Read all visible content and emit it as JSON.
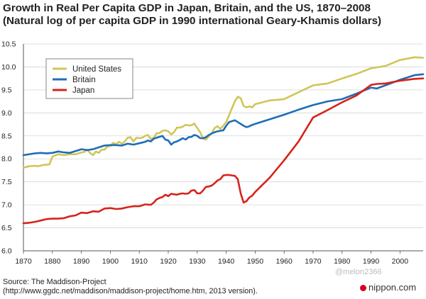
{
  "title_line1": "Growth in Real Per Capita GDP in Japan, Britain, and the US, 1870–2008",
  "title_line2": "(Natural log of per capita GDP in 1990 international Geary-Khamis dollars)",
  "source_line1": "Source: The Maddison-Project",
  "source_line2": "(http://www.ggdc.net/maddison/maddison-project/home.htm, 2013 version).",
  "watermark": "@melon2366",
  "brand": "nippon.com",
  "brand_color": "#d6001c",
  "chart_data": {
    "type": "line",
    "title": "Growth in Real Per Capita GDP in Japan, Britain, and the US, 1870–2008",
    "xlim": [
      1870,
      2008
    ],
    "ylim": [
      6.0,
      10.5
    ],
    "x_ticks": [
      1870,
      1880,
      1890,
      1900,
      1910,
      1920,
      1930,
      1940,
      1950,
      1960,
      1970,
      1980,
      1990,
      2000
    ],
    "x_tick_labels": [
      "1870",
      "1880",
      "1890",
      "1900",
      "1910",
      "1920",
      "1930",
      "1940",
      "1950",
      "1960",
      "1970",
      "1980",
      "1990",
      "2000"
    ],
    "y_ticks": [
      6.0,
      6.5,
      7.0,
      7.5,
      8.0,
      8.5,
      9.0,
      9.5,
      10.0,
      10.5
    ],
    "y_tick_labels": [
      "6.0",
      "6.5",
      "7.0",
      "7.5",
      "8.0",
      "8.5",
      "9.0",
      "9.5",
      "10.0",
      "10.5"
    ],
    "grid": "horizontal",
    "legend_position": "top-left",
    "series": [
      {
        "name": "United States",
        "color": "#cfc65a",
        "points": [
          [
            1870,
            7.81
          ],
          [
            1872,
            7.84
          ],
          [
            1874,
            7.85
          ],
          [
            1875,
            7.84
          ],
          [
            1877,
            7.87
          ],
          [
            1879,
            7.88
          ],
          [
            1880,
            8.05
          ],
          [
            1882,
            8.1
          ],
          [
            1884,
            8.08
          ],
          [
            1886,
            8.1
          ],
          [
            1888,
            8.1
          ],
          [
            1890,
            8.14
          ],
          [
            1891,
            8.15
          ],
          [
            1892,
            8.2
          ],
          [
            1893,
            8.13
          ],
          [
            1894,
            8.08
          ],
          [
            1895,
            8.16
          ],
          [
            1896,
            8.13
          ],
          [
            1897,
            8.2
          ],
          [
            1898,
            8.2
          ],
          [
            1899,
            8.27
          ],
          [
            1900,
            8.28
          ],
          [
            1901,
            8.35
          ],
          [
            1902,
            8.32
          ],
          [
            1903,
            8.37
          ],
          [
            1904,
            8.33
          ],
          [
            1905,
            8.38
          ],
          [
            1906,
            8.46
          ],
          [
            1907,
            8.47
          ],
          [
            1908,
            8.38
          ],
          [
            1909,
            8.46
          ],
          [
            1910,
            8.45
          ],
          [
            1911,
            8.46
          ],
          [
            1912,
            8.5
          ],
          [
            1913,
            8.52
          ],
          [
            1914,
            8.43
          ],
          [
            1915,
            8.46
          ],
          [
            1916,
            8.56
          ],
          [
            1917,
            8.56
          ],
          [
            1918,
            8.61
          ],
          [
            1919,
            8.62
          ],
          [
            1920,
            8.6
          ],
          [
            1921,
            8.53
          ],
          [
            1922,
            8.58
          ],
          [
            1923,
            8.68
          ],
          [
            1924,
            8.68
          ],
          [
            1925,
            8.7
          ],
          [
            1926,
            8.74
          ],
          [
            1927,
            8.73
          ],
          [
            1928,
            8.73
          ],
          [
            1929,
            8.77
          ],
          [
            1930,
            8.67
          ],
          [
            1931,
            8.58
          ],
          [
            1932,
            8.44
          ],
          [
            1933,
            8.42
          ],
          [
            1934,
            8.49
          ],
          [
            1935,
            8.56
          ],
          [
            1936,
            8.67
          ],
          [
            1937,
            8.71
          ],
          [
            1938,
            8.65
          ],
          [
            1939,
            8.72
          ],
          [
            1940,
            8.8
          ],
          [
            1941,
            8.95
          ],
          [
            1942,
            9.1
          ],
          [
            1943,
            9.25
          ],
          [
            1944,
            9.35
          ],
          [
            1945,
            9.32
          ],
          [
            1946,
            9.15
          ],
          [
            1947,
            9.12
          ],
          [
            1948,
            9.14
          ],
          [
            1949,
            9.12
          ],
          [
            1950,
            9.19
          ],
          [
            1955,
            9.27
          ],
          [
            1960,
            9.3
          ],
          [
            1965,
            9.45
          ],
          [
            1970,
            9.6
          ],
          [
            1975,
            9.64
          ],
          [
            1980,
            9.75
          ],
          [
            1985,
            9.85
          ],
          [
            1990,
            9.97
          ],
          [
            1995,
            10.02
          ],
          [
            2000,
            10.15
          ],
          [
            2005,
            10.21
          ],
          [
            2008,
            10.2
          ]
        ]
      },
      {
        "name": "Britain",
        "color": "#1f6db5",
        "points": [
          [
            1870,
            8.08
          ],
          [
            1872,
            8.1
          ],
          [
            1874,
            8.12
          ],
          [
            1876,
            8.13
          ],
          [
            1878,
            8.12
          ],
          [
            1880,
            8.13
          ],
          [
            1882,
            8.16
          ],
          [
            1884,
            8.14
          ],
          [
            1886,
            8.13
          ],
          [
            1888,
            8.17
          ],
          [
            1890,
            8.21
          ],
          [
            1892,
            8.19
          ],
          [
            1894,
            8.21
          ],
          [
            1896,
            8.25
          ],
          [
            1898,
            8.29
          ],
          [
            1900,
            8.3
          ],
          [
            1902,
            8.3
          ],
          [
            1904,
            8.29
          ],
          [
            1906,
            8.33
          ],
          [
            1908,
            8.31
          ],
          [
            1910,
            8.34
          ],
          [
            1912,
            8.37
          ],
          [
            1913,
            8.4
          ],
          [
            1914,
            8.38
          ],
          [
            1915,
            8.44
          ],
          [
            1916,
            8.46
          ],
          [
            1917,
            8.48
          ],
          [
            1918,
            8.5
          ],
          [
            1919,
            8.42
          ],
          [
            1920,
            8.4
          ],
          [
            1921,
            8.31
          ],
          [
            1922,
            8.36
          ],
          [
            1923,
            8.38
          ],
          [
            1924,
            8.41
          ],
          [
            1925,
            8.45
          ],
          [
            1926,
            8.42
          ],
          [
            1927,
            8.47
          ],
          [
            1928,
            8.48
          ],
          [
            1929,
            8.52
          ],
          [
            1930,
            8.5
          ],
          [
            1931,
            8.45
          ],
          [
            1932,
            8.45
          ],
          [
            1933,
            8.47
          ],
          [
            1934,
            8.52
          ],
          [
            1935,
            8.55
          ],
          [
            1936,
            8.58
          ],
          [
            1937,
            8.6
          ],
          [
            1938,
            8.61
          ],
          [
            1939,
            8.62
          ],
          [
            1940,
            8.72
          ],
          [
            1941,
            8.8
          ],
          [
            1942,
            8.82
          ],
          [
            1943,
            8.84
          ],
          [
            1944,
            8.8
          ],
          [
            1945,
            8.76
          ],
          [
            1946,
            8.72
          ],
          [
            1947,
            8.69
          ],
          [
            1948,
            8.71
          ],
          [
            1949,
            8.74
          ],
          [
            1950,
            8.76
          ],
          [
            1955,
            8.86
          ],
          [
            1960,
            8.96
          ],
          [
            1965,
            9.07
          ],
          [
            1970,
            9.17
          ],
          [
            1975,
            9.25
          ],
          [
            1980,
            9.3
          ],
          [
            1985,
            9.42
          ],
          [
            1990,
            9.55
          ],
          [
            1992,
            9.53
          ],
          [
            1995,
            9.6
          ],
          [
            2000,
            9.72
          ],
          [
            2005,
            9.82
          ],
          [
            2008,
            9.84
          ]
        ]
      },
      {
        "name": "Japan",
        "color": "#d6231b",
        "points": [
          [
            1870,
            6.6
          ],
          [
            1872,
            6.61
          ],
          [
            1874,
            6.63
          ],
          [
            1876,
            6.66
          ],
          [
            1878,
            6.69
          ],
          [
            1880,
            6.7
          ],
          [
            1882,
            6.7
          ],
          [
            1884,
            6.71
          ],
          [
            1886,
            6.75
          ],
          [
            1888,
            6.77
          ],
          [
            1890,
            6.83
          ],
          [
            1892,
            6.82
          ],
          [
            1894,
            6.86
          ],
          [
            1896,
            6.85
          ],
          [
            1898,
            6.92
          ],
          [
            1900,
            6.93
          ],
          [
            1902,
            6.91
          ],
          [
            1904,
            6.92
          ],
          [
            1906,
            6.95
          ],
          [
            1908,
            6.97
          ],
          [
            1910,
            6.97
          ],
          [
            1912,
            7.01
          ],
          [
            1914,
            7.0
          ],
          [
            1915,
            7.05
          ],
          [
            1916,
            7.12
          ],
          [
            1917,
            7.15
          ],
          [
            1918,
            7.17
          ],
          [
            1919,
            7.22
          ],
          [
            1920,
            7.19
          ],
          [
            1921,
            7.24
          ],
          [
            1922,
            7.23
          ],
          [
            1923,
            7.22
          ],
          [
            1924,
            7.24
          ],
          [
            1925,
            7.25
          ],
          [
            1926,
            7.24
          ],
          [
            1927,
            7.25
          ],
          [
            1928,
            7.31
          ],
          [
            1929,
            7.32
          ],
          [
            1930,
            7.25
          ],
          [
            1931,
            7.25
          ],
          [
            1932,
            7.31
          ],
          [
            1933,
            7.39
          ],
          [
            1934,
            7.4
          ],
          [
            1935,
            7.42
          ],
          [
            1936,
            7.47
          ],
          [
            1937,
            7.53
          ],
          [
            1938,
            7.56
          ],
          [
            1939,
            7.64
          ],
          [
            1940,
            7.65
          ],
          [
            1941,
            7.65
          ],
          [
            1942,
            7.64
          ],
          [
            1943,
            7.63
          ],
          [
            1944,
            7.56
          ],
          [
            1945,
            7.25
          ],
          [
            1946,
            7.05
          ],
          [
            1947,
            7.08
          ],
          [
            1948,
            7.16
          ],
          [
            1949,
            7.2
          ],
          [
            1950,
            7.28
          ],
          [
            1955,
            7.59
          ],
          [
            1960,
            7.97
          ],
          [
            1965,
            8.38
          ],
          [
            1970,
            8.9
          ],
          [
            1975,
            9.06
          ],
          [
            1980,
            9.23
          ],
          [
            1985,
            9.38
          ],
          [
            1990,
            9.61
          ],
          [
            1992,
            9.63
          ],
          [
            1995,
            9.64
          ],
          [
            2000,
            9.7
          ],
          [
            2005,
            9.74
          ],
          [
            2008,
            9.75
          ]
        ]
      }
    ]
  }
}
